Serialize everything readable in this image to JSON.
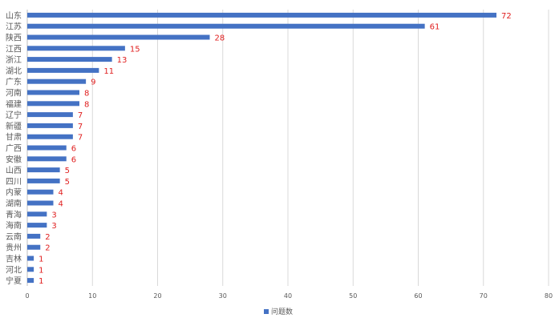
{
  "chart_data": {
    "type": "bar",
    "orientation": "horizontal",
    "categories": [
      "山东",
      "江苏",
      "陕西",
      "江西",
      "浙江",
      "湖北",
      "广东",
      "河南",
      "福建",
      "辽宁",
      "新疆",
      "甘肃",
      "广西",
      "安徽",
      "山西",
      "四川",
      "内蒙",
      "湖南",
      "青海",
      "海南",
      "云南",
      "贵州",
      "吉林",
      "河北",
      "宁夏"
    ],
    "series": [
      {
        "name": "问题数",
        "values": [
          72,
          61,
          28,
          15,
          13,
          11,
          9,
          8,
          8,
          7,
          7,
          7,
          6,
          6,
          5,
          5,
          4,
          4,
          3,
          3,
          2,
          2,
          1,
          1,
          1
        ]
      }
    ],
    "xlim": [
      0,
      80
    ],
    "xticks": [
      "0",
      "10",
      "20",
      "30",
      "40",
      "50",
      "60",
      "70",
      "80"
    ],
    "grid": true,
    "legend_position": "bottom",
    "colors": {
      "bar": "#4472c4",
      "data_label": "#e02020",
      "grid": "#d9d9d9",
      "axis": "#bfbfbf",
      "text": "#595959"
    }
  }
}
